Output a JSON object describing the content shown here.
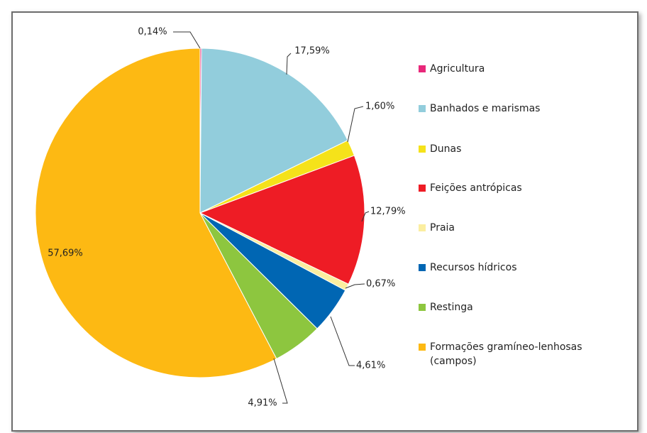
{
  "chart_data": {
    "type": "pie",
    "categories": [
      "Agricultura",
      "Banhados e marismas",
      "Dunas",
      "Feições antrópicas",
      "Praia",
      "Recursos hídricos",
      "Restinga",
      "Formações gramíneo-lenhosas (campos)"
    ],
    "values": [
      0.14,
      17.59,
      1.6,
      12.79,
      0.67,
      4.61,
      4.91,
      57.69
    ],
    "value_labels": [
      "0,14%",
      "17,59%",
      "1,60%",
      "12,79%",
      "0,67%",
      "4,61%",
      "4,91%",
      "57,69%"
    ],
    "colors": [
      "#e8287a",
      "#92cddc",
      "#f5e21a",
      "#ee1c25",
      "#fbeea0",
      "#0066b3",
      "#8dc63f",
      "#fdb913"
    ],
    "legend": "right"
  }
}
